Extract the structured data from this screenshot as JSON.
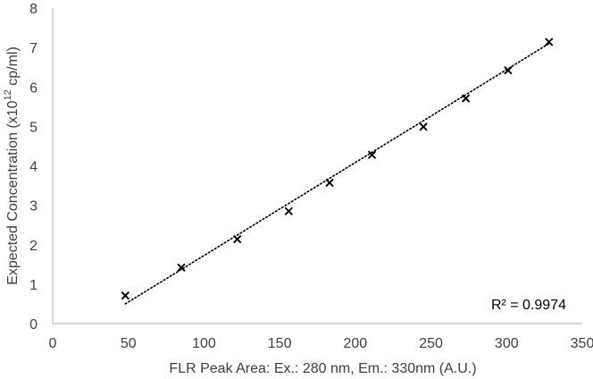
{
  "chart_data": {
    "type": "scatter",
    "title": "",
    "xlabel": "FLR Peak Area: Ex.: 280 nm, Em.: 330nm (A.U.)",
    "ylabel_prefix": "Expected Concentration (x10",
    "ylabel_sup": "12",
    "ylabel_suffix": " cp/ml)",
    "xlim": [
      0,
      350
    ],
    "ylim": [
      0,
      8
    ],
    "xticks": [
      0,
      50,
      100,
      150,
      200,
      250,
      300,
      350
    ],
    "yticks": [
      0,
      1,
      2,
      3,
      4,
      5,
      6,
      7,
      8
    ],
    "grid": false,
    "legend": "none",
    "series": [
      {
        "marker": "x",
        "color": "#000000",
        "x": [
          48,
          85,
          122,
          156,
          183,
          211,
          245,
          273,
          301,
          328
        ],
        "y": [
          0.71,
          1.42,
          2.14,
          2.85,
          3.57,
          4.28,
          4.99,
          5.71,
          6.42,
          7.14
        ]
      }
    ],
    "trendline": {
      "style": "dotted",
      "color": "#000000",
      "x": [
        48,
        328
      ],
      "y": [
        0.5,
        7.1
      ]
    },
    "annotation": "R² = 0.9974"
  }
}
